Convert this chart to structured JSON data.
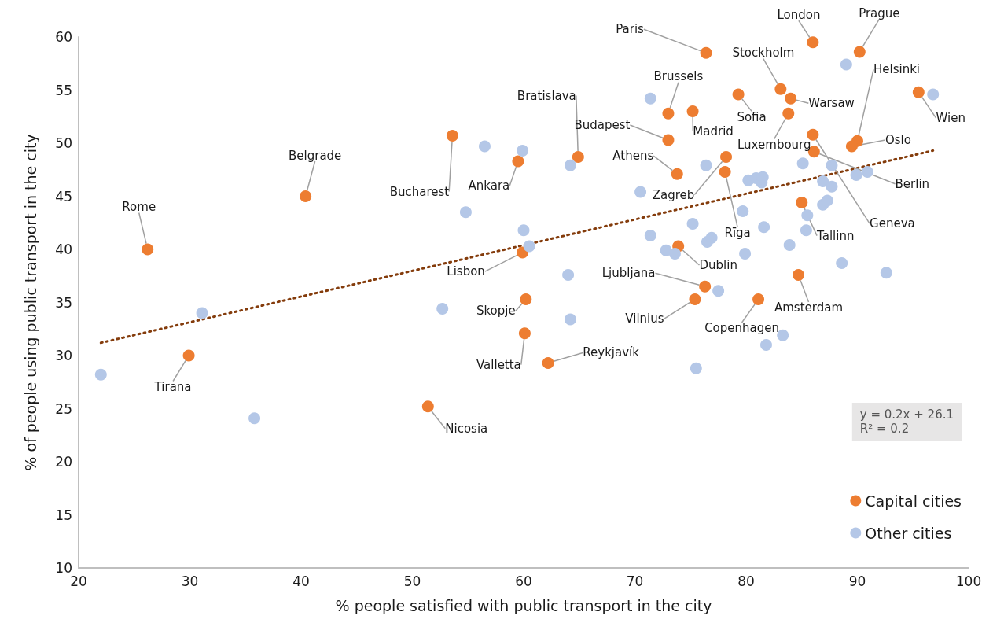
{
  "chart_data": {
    "type": "scatter",
    "xlabel": "% people satisfied with public transport in the city",
    "ylabel": "% of people using public transport in the city",
    "xlim": [
      20,
      100
    ],
    "xticks": [
      20,
      30,
      40,
      50,
      60,
      70,
      80,
      90,
      100
    ],
    "ylim": [
      10,
      60
    ],
    "yticks": [
      10,
      15,
      20,
      25,
      30,
      35,
      40,
      45,
      50,
      55,
      60
    ],
    "grid": false,
    "legend": "bottom right",
    "marker": "circle",
    "annotations": [
      "y = 0.2x + 26.1\nR² = 0.2"
    ],
    "series": [
      {
        "name": "Capital cities",
        "color": "#ed7d31",
        "x": [
          26.2,
          40.4,
          53.6,
          59.5,
          64.9,
          59.9,
          29.9,
          51.4,
          60.2,
          60.1,
          62.2,
          76.4,
          86.0,
          90.2,
          83.1,
          84.0,
          79.3,
          73.0,
          75.2,
          83.8,
          73.0,
          73.8,
          78.2,
          78.1,
          86.1,
          86.0,
          90.0,
          89.5,
          95.5,
          85.0,
          73.9,
          76.3,
          75.4,
          81.1,
          84.7
        ],
        "values": [
          40.0,
          45.0,
          50.7,
          48.3,
          48.7,
          39.7,
          30.0,
          25.2,
          35.3,
          32.1,
          29.3,
          58.5,
          59.5,
          58.6,
          55.1,
          54.2,
          54.6,
          52.8,
          53.0,
          52.8,
          50.3,
          47.1,
          48.7,
          47.3,
          49.2,
          50.8,
          50.2,
          49.7,
          54.8,
          44.4,
          40.3,
          36.5,
          35.3,
          35.3,
          37.6
        ],
        "value_labels": [
          "Rome",
          "Belgrade",
          "Bucharest",
          "Ankara",
          "Bratislava",
          "Lisbon",
          "Tirana",
          "Nicosia",
          "Skopje",
          "Valletta",
          "Reykjavík",
          "Paris",
          "London",
          "Prague",
          "Stockholm",
          "Warsaw",
          "Sofia",
          "Brussels",
          "Madrid",
          "Luxembourg",
          "Budapest",
          "Athens",
          "Zagreb",
          "Rīga",
          "Berlin",
          "Geneva",
          "Helsinki",
          "Oslo",
          "Wien",
          "Tallinn",
          "Dublin",
          "Ljubljana",
          "Vilnius",
          "Copenhagen",
          "Amsterdam"
        ]
      },
      {
        "name": "Other cities",
        "color": "#b4c7e7",
        "x": [
          22.0,
          31.1,
          35.8,
          54.8,
          52.7,
          56.5,
          59.9,
          60.0,
          60.5,
          64.0,
          64.2,
          64.2,
          71.4,
          70.5,
          71.4,
          72.8,
          73.6,
          75.2,
          76.4,
          76.5,
          76.9,
          77.5,
          75.5,
          79.7,
          79.9,
          80.2,
          80.9,
          81.4,
          81.5,
          81.6,
          81.8,
          83.3,
          83.9,
          85.1,
          85.5,
          85.4,
          86.9,
          87.7,
          86.9,
          87.3,
          87.7,
          89.9,
          90.9,
          88.6,
          92.6,
          89.0,
          96.8
        ],
        "values": [
          28.2,
          34.0,
          24.1,
          43.5,
          34.4,
          49.7,
          49.3,
          41.8,
          40.3,
          37.6,
          33.4,
          47.9,
          54.2,
          45.4,
          41.3,
          39.9,
          39.6,
          42.4,
          47.9,
          40.7,
          41.1,
          36.1,
          28.8,
          43.6,
          39.6,
          46.5,
          46.7,
          46.3,
          46.8,
          42.1,
          31.0,
          31.9,
          40.4,
          48.1,
          43.2,
          41.8,
          46.4,
          45.9,
          44.2,
          44.6,
          47.9,
          47.0,
          47.3,
          38.7,
          37.8,
          57.4,
          54.6
        ]
      },
      {
        "type": "line",
        "color": "#843c0c",
        "line_style": "dotted",
        "marker": "none",
        "x": [
          22.0,
          96.8
        ],
        "values": [
          31.2,
          49.3
        ]
      }
    ]
  }
}
